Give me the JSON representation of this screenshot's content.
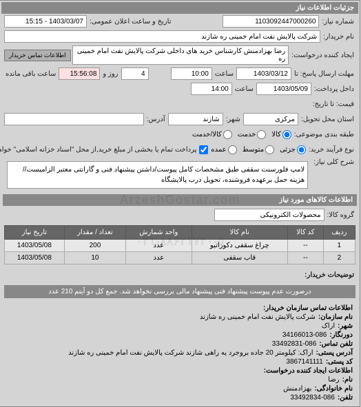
{
  "header": {
    "title": "جزئیات اطلاعات نیاز"
  },
  "fields": {
    "request_number_label": "شماره نیاز:",
    "request_number": "1103092447000260",
    "announce_datetime_label": "تاریخ و ساعت اعلان عمومی:",
    "announce_datetime": "1403/03/07 - 15:15",
    "requester_label": "نام خریدار:",
    "requester": "شرکت پالایش نفت امام خمینی  ره  شازند",
    "creator_label": "ایجاد کننده درخواست:",
    "creator": "رضا بهزادمنش کارشناس خرید های داخلی  شرکت پالایش نفت امام خمینی  ره",
    "buyer_contact_btn": "اطلاعات تماس خریدار",
    "deadline_send_label": "مهلت ارسال پاسخ: تا",
    "deadline_date": "1403/03/12",
    "time_label": "ساعت",
    "deadline_time": "10:00",
    "and_label": "و",
    "days_label": "روز و",
    "days_remaining": "4",
    "remaining_label": "ساعت باقی مانده",
    "remaining_time": "15:56:08",
    "valid_until_label": "داخل پرداخت:",
    "valid_until_label2": "قیمت: تا تاریخ:",
    "valid_date": "1403/05/09",
    "valid_time": "14:00",
    "delivery_location_label": "استان محل تحویل:",
    "delivery_province": "مرکزی",
    "delivery_city_label": "شهر:",
    "delivery_city": "شازند",
    "address_label": "آدرس:",
    "status_label": "طبقه بندی موضوعی:",
    "payment_label": "نوع فرآیند خرید:",
    "goods_type_label": "شرح کلی نیاز:",
    "goods_desc": "لامپ فلورسنت سقفی طبق مشخصات کامل پیوست/داشتن پیشنهاد فنی و گارانتی معتبر الزامیست//هزینه حمل برعهده فروشنده، تحویل درب پالایشگاه",
    "payment_note": "پرداخت تمام یا بخشی از مبلغ خرید,از محل \"اسناد خزانه اسلامی\" خواهد بود."
  },
  "radios": {
    "status": {
      "option1": "کالا",
      "option2": "خدمت",
      "option3": "کالا/خدمت"
    },
    "payment": {
      "option1": "جزئی",
      "option2": "متوسط",
      "option3": "عمده"
    }
  },
  "goods_section": {
    "title": "اطلاعات کالاهای مورد نیاز",
    "filter_label": "گروه کالا:",
    "filter_value": "محصولات الکترونیکی"
  },
  "table": {
    "headers": {
      "row": "ردیف",
      "code": "کد کالا",
      "name": "نام کالا",
      "unit": "واحد شمارش",
      "qty": "تعداد / مقدار",
      "date": "تاریخ نیاز"
    },
    "rows": [
      {
        "row": "1",
        "code": "--",
        "name": "چراغ سقفی دکوراتیو",
        "unit": "عدد",
        "qty": "200",
        "date": "1403/05/08"
      },
      {
        "row": "2",
        "code": "--",
        "name": "قاب سقفی",
        "unit": "عدد",
        "qty": "10",
        "date": "1403/05/08"
      }
    ]
  },
  "buyer_notes": {
    "label": "توضیحات خریدار:",
    "text": "درصورت عدم پیوست پیشنهاد فنی پیشنهاد مالی بررسی نخواهد شد. جمع کل دو آیتم 210 عدد"
  },
  "contact": {
    "title": "اطلاعات تماس سازمان خریدار:",
    "org_label": "نام سازمان:",
    "org": "شرکت پالایش نفت امام خمینی ره شازند",
    "city_label": "شهر:",
    "city": "اراک",
    "prefix_label": "دورنگار:",
    "prefix": "34166013-086",
    "phone_label": "تلفن تماس:",
    "phone": "33492831-086",
    "address_label": "آدرس پستی:",
    "address": "اراک: کیلومتر 20 جاده بروجرد یه راهی شازند شرکت پالایش نفت امام خمینی ره شازند",
    "postal_label": "کد پستی:",
    "postal": "3867141111",
    "creator_title": "اطلاعات ایجاد کننده درخواست:",
    "name_label": "نام:",
    "name": "رضا",
    "family_label": "نام خانوادگی:",
    "family": "بهزادمنش",
    "tel_label": "تلفن:",
    "tel": "33492834-086"
  },
  "watermark": {
    "line1": "ArzeshGostar.com",
    "line2": "۰۲۱-۸۸۶۲۱۷۲۰-۵"
  }
}
